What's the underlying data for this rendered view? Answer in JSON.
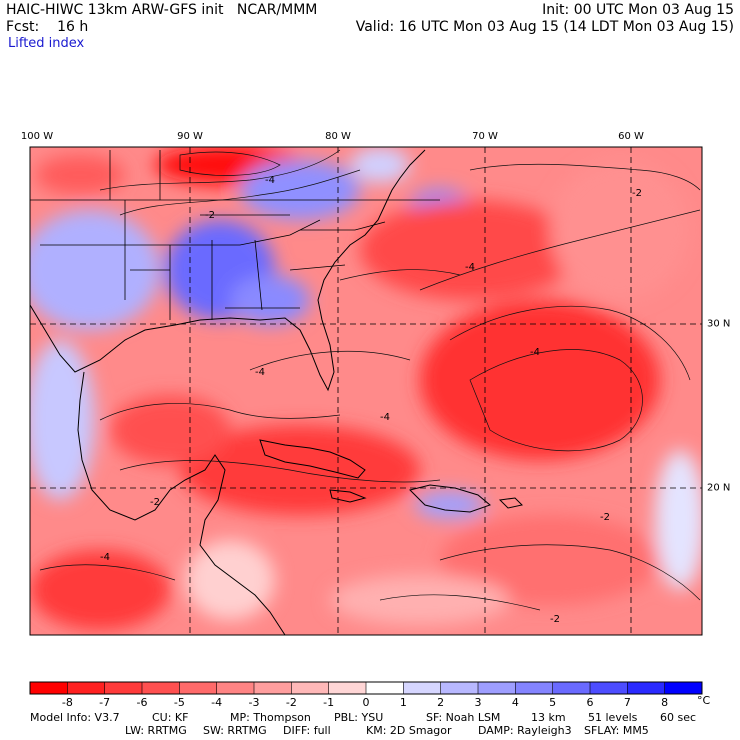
{
  "header": {
    "title": "HAIC-HIWC 13km ARW-GFS init",
    "org": "NCAR/MMM",
    "init": "Init: 00 UTC Mon 03 Aug 15",
    "forecast_label": "Fcst:",
    "forecast_value": "16 h",
    "valid": "Valid: 16 UTC Mon 03 Aug 15 (14 LDT Mon 03 Aug 15)",
    "field": "Lifted index"
  },
  "longitudes": [
    "100 W",
    "90 W",
    "80 W",
    "70 W",
    "60 W"
  ],
  "latitudes": [
    "30 N",
    "20 N"
  ],
  "map": {
    "contour_labels": [
      "-4",
      "-2",
      "-2",
      "-4",
      "-4",
      "-4",
      "-2",
      "-2",
      "-2",
      "-4",
      "-4"
    ]
  },
  "colorbar": {
    "ticks": [
      "-8",
      "-7",
      "-6",
      "-5",
      "-4",
      "-3",
      "-2",
      "-1",
      "0",
      "1",
      "2",
      "3",
      "4",
      "5",
      "6",
      "7",
      "8"
    ],
    "unit": "°C",
    "colors": [
      "#ff0000",
      "#ff2020",
      "#ff3a3a",
      "#ff5050",
      "#ff6a6a",
      "#ff8484",
      "#ff9e9e",
      "#ffb8b8",
      "#ffd6d6",
      "#ffffff",
      "#d6d6ff",
      "#b8b8ff",
      "#9e9eff",
      "#8484ff",
      "#6a6aff",
      "#4d4dff",
      "#2a2aff",
      "#0000ff"
    ]
  },
  "model_info": {
    "line1": [
      "Model Info: V3.7",
      "CU: KF",
      "MP: Thompson",
      "PBL: YSU",
      "SF: Noah LSM",
      "13 km",
      "51 levels",
      "60 sec"
    ],
    "line2": [
      "LW: RRTMG",
      "SW: RRTMG",
      "DIFF: full",
      "KM: 2D Smagor",
      "DAMP: Rayleigh3",
      "SFLAY: MM5"
    ]
  }
}
